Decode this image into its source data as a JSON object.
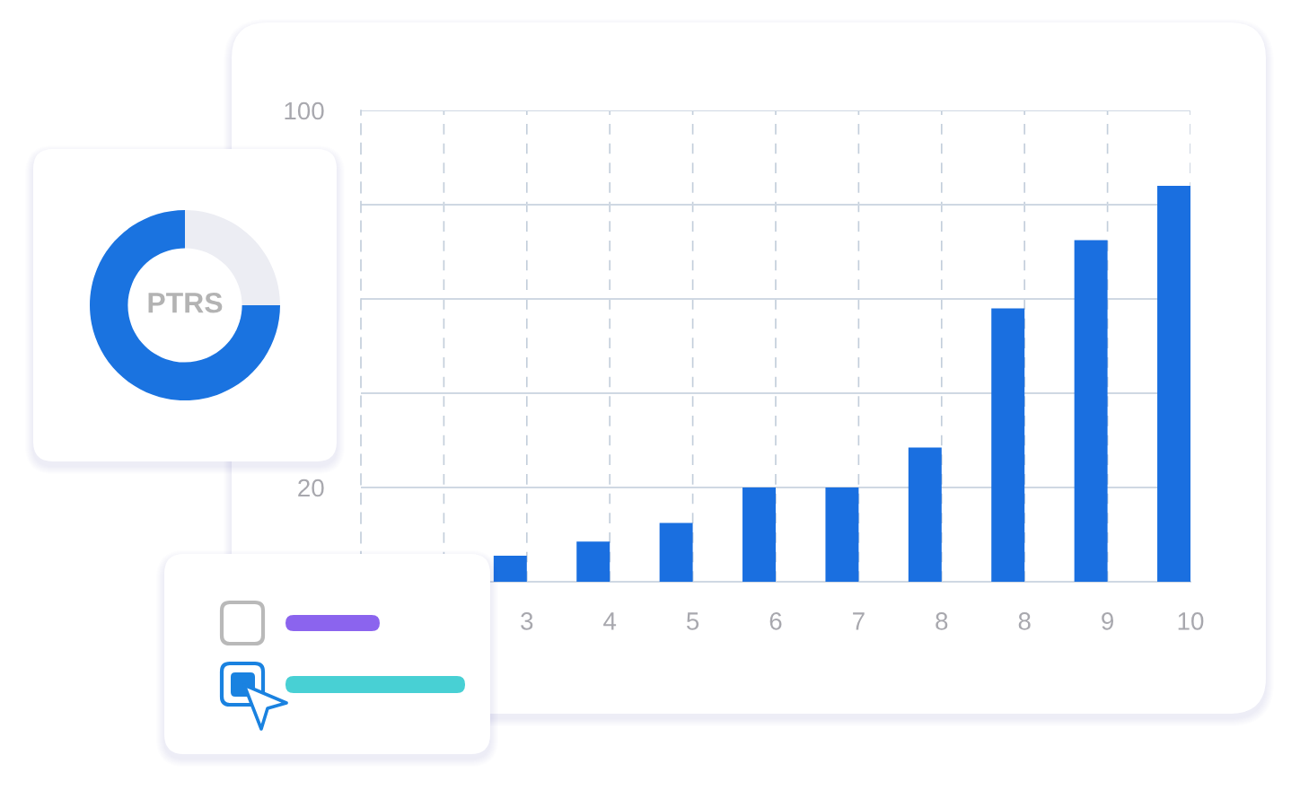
{
  "chart_data": [
    {
      "type": "bar",
      "categories": [
        null,
        "3",
        "4",
        "5",
        "6",
        "7",
        "8",
        "8",
        "9",
        "10"
      ],
      "values": [
        null,
        5.5,
        8.5,
        12.5,
        20,
        20,
        28.5,
        58,
        72.5,
        84
      ],
      "color": "#1a6fe0",
      "ylim": [
        0,
        100
      ],
      "yticks": [
        {
          "value": 0,
          "label": null
        },
        20,
        {
          "value": 40,
          "label": null
        },
        {
          "value": 60,
          "label": null
        },
        {
          "value": 80,
          "label": null
        },
        100
      ],
      "grid": true
    },
    {
      "type": "donut",
      "categories": [
        null,
        null
      ],
      "values": [
        75,
        25
      ],
      "colors": [
        "#1a73e0",
        "#ecedf3"
      ],
      "annotations": [
        "PTRS"
      ]
    }
  ]
}
